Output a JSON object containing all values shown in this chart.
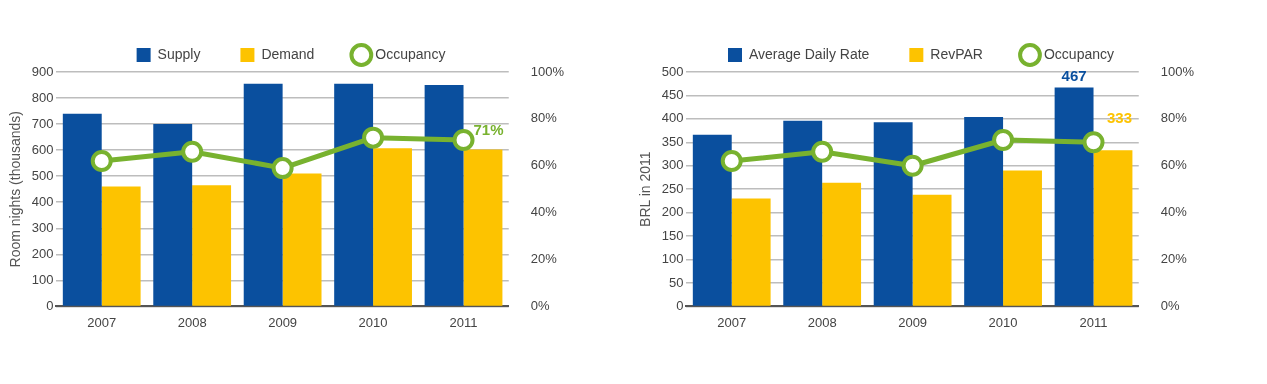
{
  "chart_data": [
    {
      "type": "bar",
      "ylabel": "Room nights (thousands)",
      "categories": [
        "2007",
        "2008",
        "2009",
        "2010",
        "2011"
      ],
      "series": [
        {
          "name": "Supply",
          "color": "#0a4f9e",
          "values": [
            740,
            700,
            855,
            855,
            850
          ]
        },
        {
          "name": "Demand",
          "color": "#fdc300",
          "values": [
            460,
            465,
            510,
            607,
            602
          ]
        },
        {
          "name": "Occupancy",
          "type": "line",
          "axis": "y2",
          "color": "#78b22f",
          "values": [
            62,
            66,
            59,
            72,
            71
          ],
          "value_labels": [
            null,
            null,
            null,
            null,
            "71%"
          ]
        }
      ],
      "ylim": [
        0,
        900
      ],
      "yticks": [
        0,
        100,
        200,
        300,
        400,
        500,
        600,
        700,
        800,
        900
      ],
      "y2lim": [
        0,
        100
      ],
      "y2ticks": [
        {
          "value": 0,
          "label": "0%"
        },
        {
          "value": 20,
          "label": "20%"
        },
        {
          "value": 40,
          "label": "40%"
        },
        {
          "value": 60,
          "label": "60%"
        },
        {
          "value": 80,
          "label": "80%"
        },
        {
          "value": 100,
          "label": "100%"
        }
      ],
      "grid": "y",
      "legend": "top",
      "marker": "circle"
    },
    {
      "type": "bar",
      "ylabel": "BRL in 2011",
      "categories": [
        "2007",
        "2008",
        "2009",
        "2010",
        "2011"
      ],
      "series": [
        {
          "name": "Average Daily Rate",
          "color": "#0a4f9e",
          "values": [
            366,
            396,
            393,
            404,
            467
          ],
          "value_labels": [
            null,
            null,
            null,
            null,
            "467"
          ]
        },
        {
          "name": "RevPAR",
          "color": "#fdc300",
          "values": [
            230,
            264,
            238,
            290,
            333
          ],
          "value_labels": [
            null,
            null,
            null,
            null,
            "333"
          ]
        },
        {
          "name": "Occupancy",
          "type": "line",
          "axis": "y2",
          "color": "#78b22f",
          "values": [
            62,
            66,
            60,
            71,
            70
          ]
        }
      ],
      "ylim": [
        0,
        500
      ],
      "yticks": [
        0,
        50,
        100,
        150,
        200,
        250,
        300,
        350,
        400,
        450,
        500
      ],
      "y2lim": [
        0,
        100
      ],
      "y2ticks": [
        {
          "value": 0,
          "label": "0%"
        },
        {
          "value": 20,
          "label": "20%"
        },
        {
          "value": 40,
          "label": "40%"
        },
        {
          "value": 60,
          "label": "60%"
        },
        {
          "value": 80,
          "label": "80%"
        },
        {
          "value": 100,
          "label": "100%"
        }
      ],
      "grid": "y",
      "legend": "top",
      "marker": "circle"
    }
  ]
}
